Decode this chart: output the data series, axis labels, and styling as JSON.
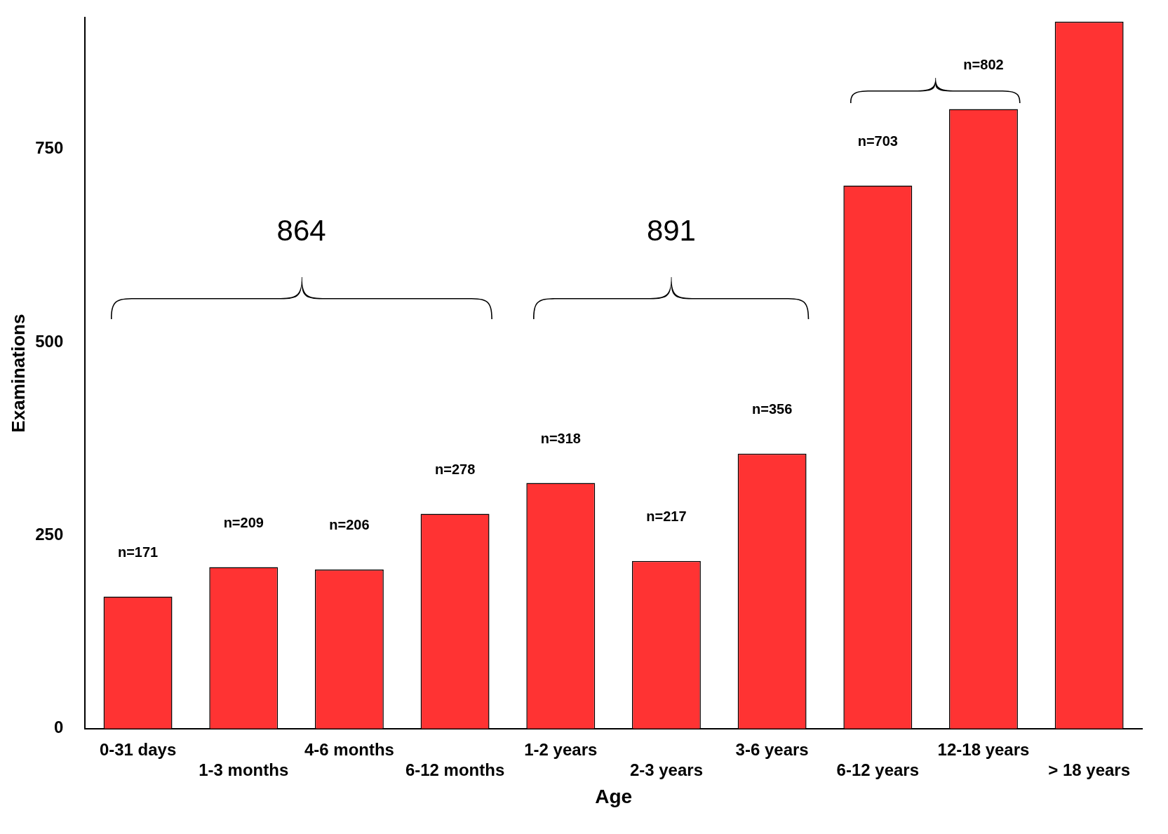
{
  "chart_data": {
    "type": "bar",
    "xlabel": "Age",
    "ylabel": "Examinations",
    "categories": [
      "0-31 days",
      "1-3 months",
      "4-6 months",
      "6-12 months",
      "1-2 years",
      "2-3 years",
      "3-6 years",
      "6-12 years",
      "12-18 years",
      "> 18 years"
    ],
    "values": [
      171,
      209,
      206,
      278,
      318,
      217,
      356,
      703,
      802,
      915
    ],
    "value_labels": [
      "n=171",
      "n=209",
      "n=206",
      "n=278",
      "n=318",
      "n=217",
      "n=356",
      "n=703",
      "n=802",
      null
    ],
    "color": "#ff3333",
    "ylim": [
      0,
      920
    ],
    "yticks": [
      0,
      250,
      500,
      750
    ],
    "grid": false,
    "legend": false,
    "annotations": [
      "864",
      "891"
    ]
  }
}
